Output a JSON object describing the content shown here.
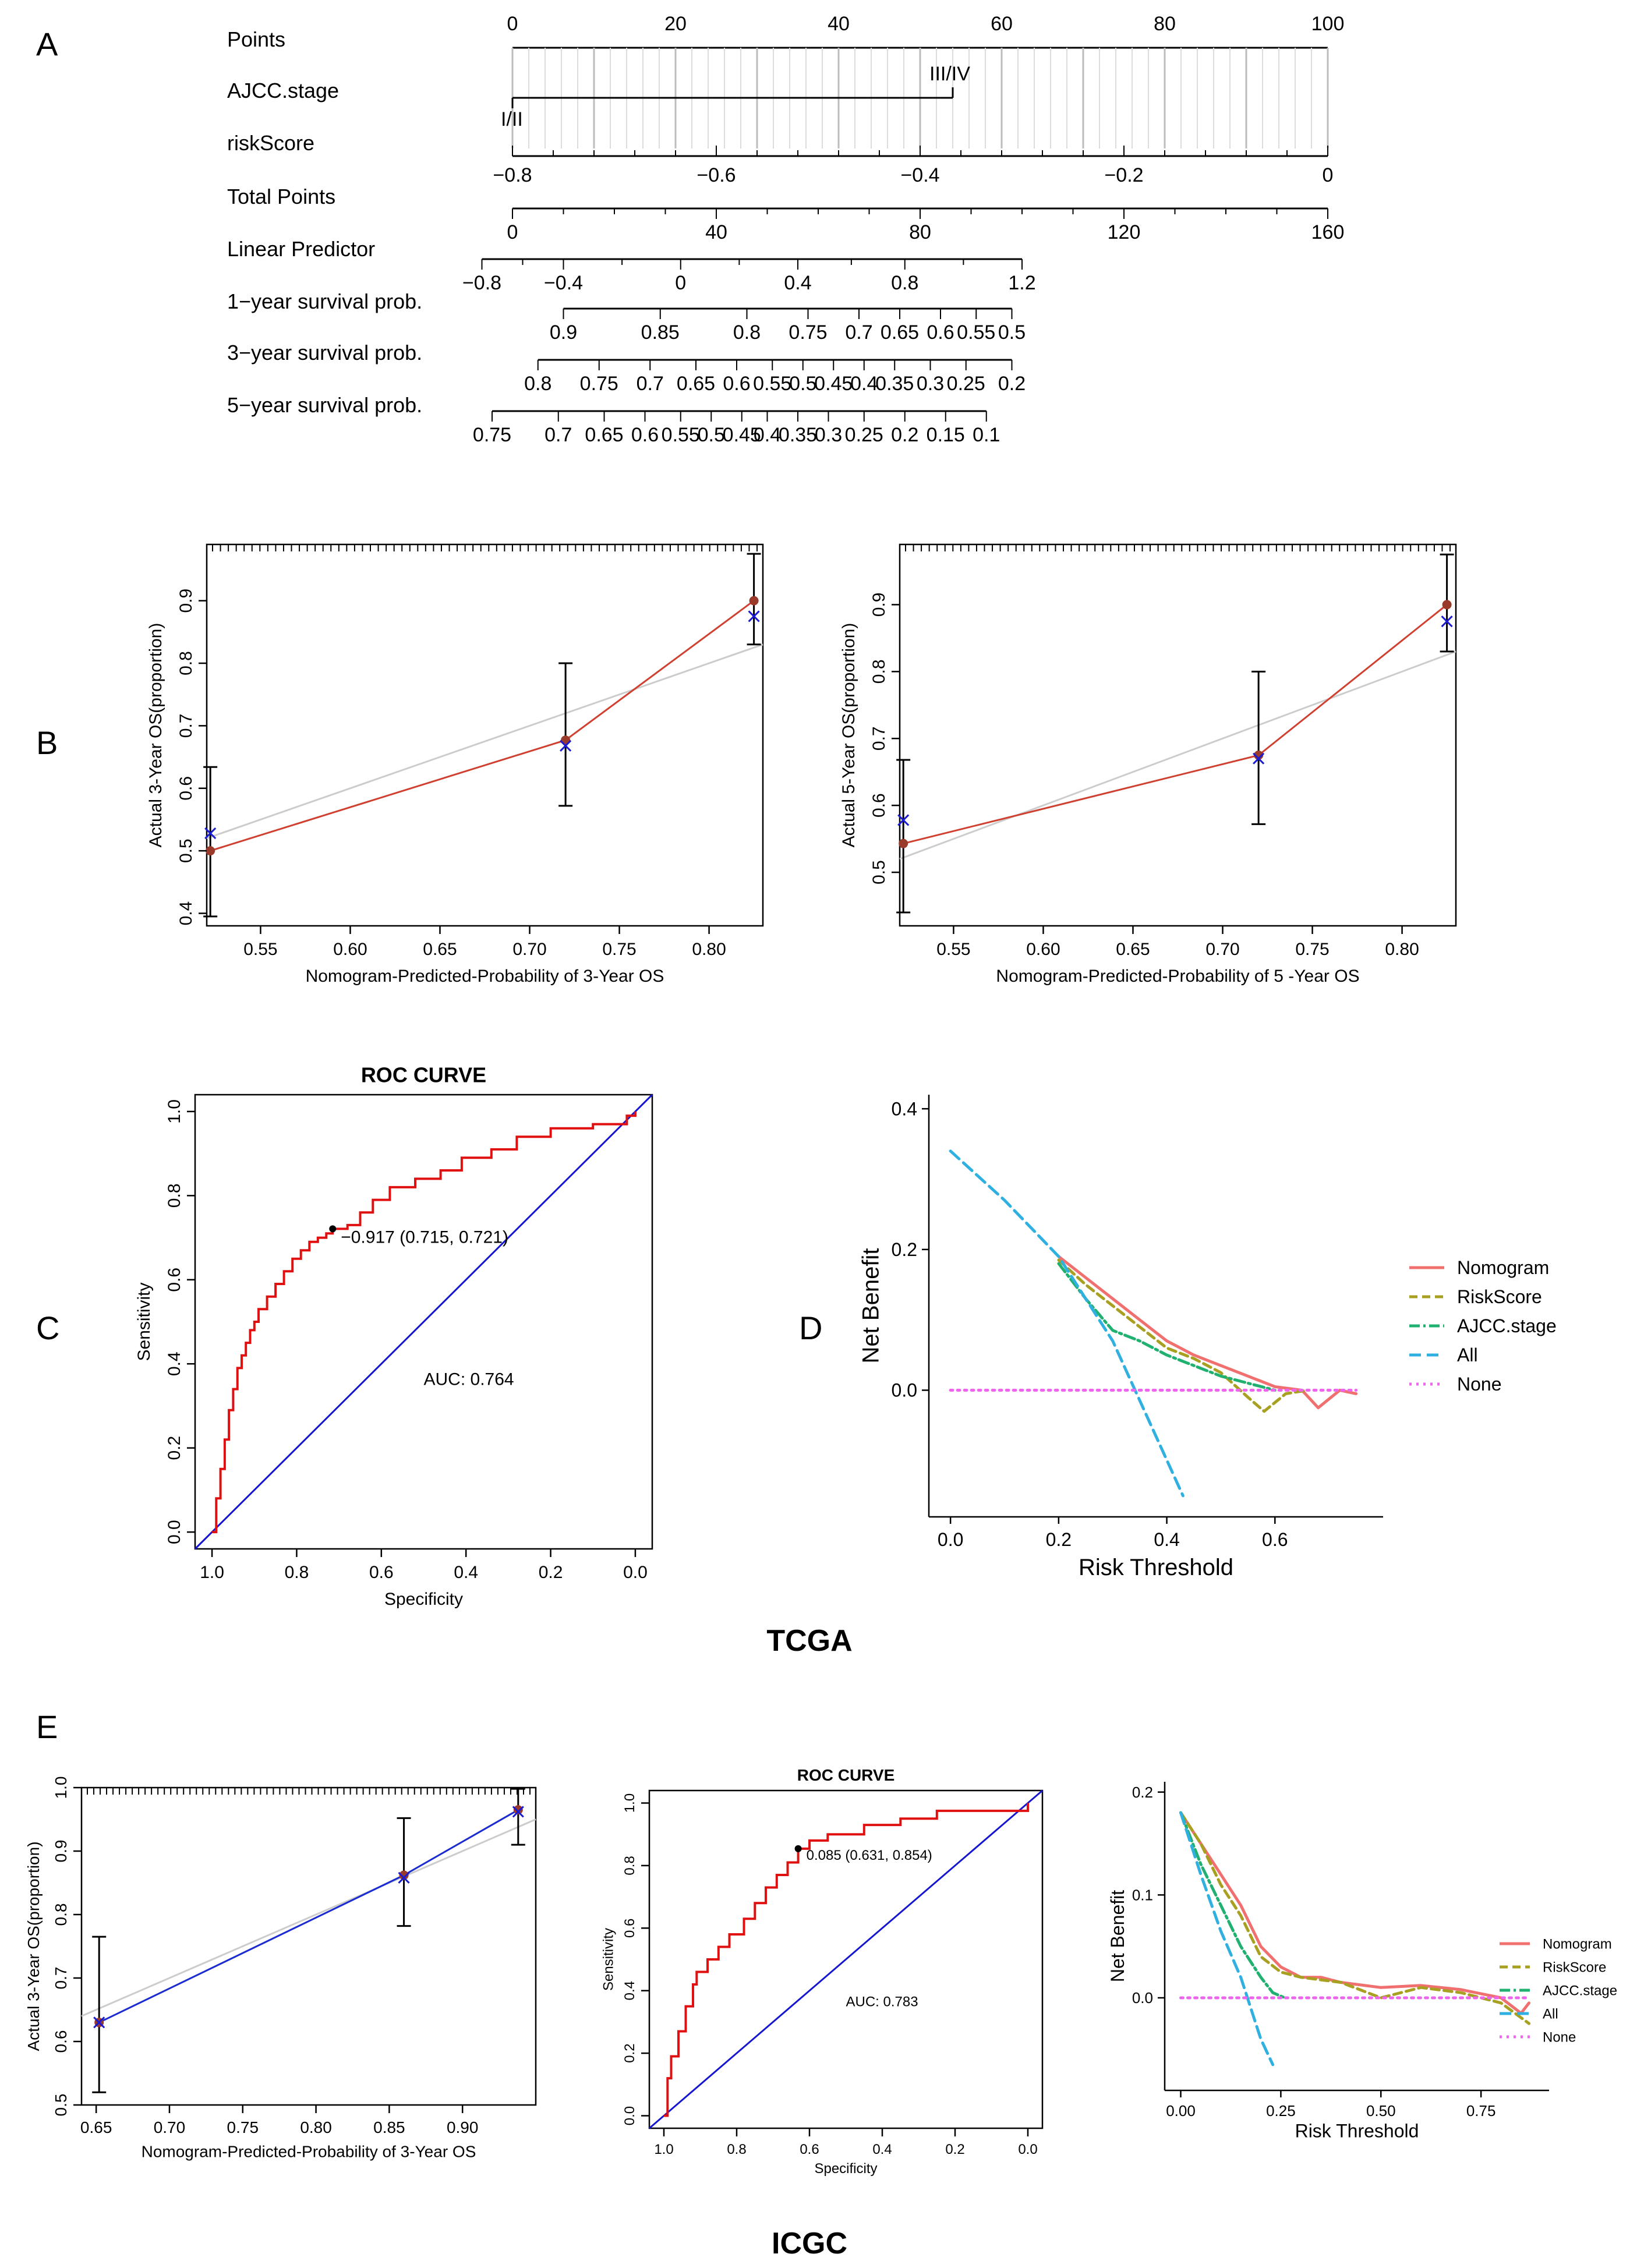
{
  "panels": {
    "A": "A",
    "B": "B",
    "C": "C",
    "D": "D",
    "E": "E"
  },
  "cohorts": {
    "tcga": "TCGA",
    "icgc": "ICGC"
  },
  "nomogram": {
    "rows": [
      {
        "key": "points",
        "label": "Points"
      },
      {
        "key": "stage",
        "label": "AJCC.stage"
      },
      {
        "key": "risk",
        "label": "riskScore"
      },
      {
        "key": "total",
        "label": "Total Points"
      },
      {
        "key": "lp",
        "label": "Linear Predictor"
      },
      {
        "key": "y1",
        "label": "1−year survival prob."
      },
      {
        "key": "y3",
        "label": "3−year survival prob."
      },
      {
        "key": "y5",
        "label": "5−year survival prob."
      }
    ],
    "points_ticks": [
      "0",
      "20",
      "40",
      "60",
      "80",
      "100"
    ],
    "stage_levels": [
      "I/II",
      "III/IV"
    ],
    "stage_points": [
      0,
      54
    ],
    "risk_ticks": [
      {
        "label": "−0.8",
        "pts": 0
      },
      {
        "label": "−0.6",
        "pts": 25
      },
      {
        "label": "−0.4",
        "pts": 50
      },
      {
        "label": "−0.2",
        "pts": 75
      },
      {
        "label": "0",
        "pts": 100
      }
    ],
    "total_ticks": [
      "0",
      "40",
      "80",
      "120",
      "160"
    ],
    "total_range": [
      0,
      160
    ],
    "lp_ticks": [
      {
        "label": "−0.8",
        "total": -6
      },
      {
        "label": "−0.4",
        "total": 10
      },
      {
        "label": "0",
        "total": 33
      },
      {
        "label": "0.4",
        "total": 56
      },
      {
        "label": "0.8",
        "total": 77
      },
      {
        "label": "1.2",
        "total": 100
      }
    ],
    "y1_ticks": [
      {
        "label": "0.9",
        "total": 10
      },
      {
        "label": "0.85",
        "total": 29
      },
      {
        "label": "0.8",
        "total": 46
      },
      {
        "label": "0.75",
        "total": 58
      },
      {
        "label": "0.7",
        "total": 68
      },
      {
        "label": "0.65",
        "total": 76
      },
      {
        "label": "0.6",
        "total": 84
      },
      {
        "label": "0.55",
        "total": 91
      },
      {
        "label": "0.5",
        "total": 98
      }
    ],
    "y3_ticks": [
      {
        "label": "0.8",
        "total": 5
      },
      {
        "label": "0.75",
        "total": 17
      },
      {
        "label": "0.7",
        "total": 27
      },
      {
        "label": "0.65",
        "total": 36
      },
      {
        "label": "0.6",
        "total": 44
      },
      {
        "label": "0.55",
        "total": 51
      },
      {
        "label": "0.5",
        "total": 57
      },
      {
        "label": "0.45",
        "total": 63
      },
      {
        "label": "0.4",
        "total": 69
      },
      {
        "label": "0.35",
        "total": 75
      },
      {
        "label": "0.3",
        "total": 82
      },
      {
        "label": "0.25",
        "total": 89
      },
      {
        "label": "0.2",
        "total": 98
      }
    ],
    "y5_ticks": [
      {
        "label": "0.75",
        "total": -4
      },
      {
        "label": "0.7",
        "total": 9
      },
      {
        "label": "0.65",
        "total": 18
      },
      {
        "label": "0.6",
        "total": 26
      },
      {
        "label": "0.55",
        "total": 33
      },
      {
        "label": "0.5",
        "total": 39
      },
      {
        "label": "0.45",
        "total": 45
      },
      {
        "label": "0.4",
        "total": 50
      },
      {
        "label": "0.35",
        "total": 56
      },
      {
        "label": "0.3",
        "total": 62
      },
      {
        "label": "0.25",
        "total": 69
      },
      {
        "label": "0.2",
        "total": 77
      },
      {
        "label": "0.15",
        "total": 85
      },
      {
        "label": "0.1",
        "total": 93
      }
    ]
  },
  "chart_data": [
    {
      "id": "B1",
      "type": "scatter",
      "title": "",
      "xlabel": "Nomogram-Predicted-Probability of 3-Year OS",
      "ylabel": "Actual 3-Year OS(proportion)",
      "xlim": [
        0.52,
        0.83
      ],
      "ylim": [
        0.38,
        0.99
      ],
      "xticks": [
        0.55,
        0.6,
        0.65,
        0.7,
        0.75,
        0.8
      ],
      "yticks": [
        0.4,
        0.5,
        0.6,
        0.7,
        0.8,
        0.9
      ],
      "line_color": "#d04030",
      "x": [
        0.522,
        0.72,
        0.825
      ],
      "observed": [
        0.5,
        0.677,
        0.9
      ],
      "corrected": [
        0.528,
        0.668,
        0.875
      ],
      "err_low": [
        0.395,
        0.572,
        0.83
      ],
      "err_high": [
        0.634,
        0.8,
        0.975
      ]
    },
    {
      "id": "B2",
      "type": "scatter",
      "title": "",
      "xlabel": "Nomogram-Predicted-Probability of 5 -Year OS",
      "ylabel": "Actual 5-Year OS(proportion)",
      "xlim": [
        0.52,
        0.83
      ],
      "ylim": [
        0.42,
        0.99
      ],
      "xticks": [
        0.55,
        0.6,
        0.65,
        0.7,
        0.75,
        0.8
      ],
      "yticks": [
        0.5,
        0.6,
        0.7,
        0.8,
        0.9
      ],
      "line_color": "#d04030",
      "x": [
        0.522,
        0.72,
        0.825
      ],
      "observed": [
        0.543,
        0.675,
        0.9
      ],
      "corrected": [
        0.578,
        0.67,
        0.875
      ],
      "err_low": [
        0.44,
        0.572,
        0.83
      ],
      "err_high": [
        0.668,
        0.8,
        0.975
      ]
    },
    {
      "id": "C",
      "type": "line",
      "title": "ROC CURVE",
      "xlabel": "Specificity",
      "ylabel": "Sensitivity",
      "xlim": [
        1.04,
        -0.04
      ],
      "ylim": [
        -0.04,
        1.04
      ],
      "xticks": [
        1.0,
        0.8,
        0.6,
        0.4,
        0.2,
        0.0
      ],
      "xtick_labels": [
        "1.0",
        "0.8",
        "0.6",
        "0.4",
        "0.2",
        "0.0"
      ],
      "yticks": [
        0.0,
        0.2,
        0.4,
        0.6,
        0.8,
        1.0
      ],
      "ytick_labels": [
        "0.0",
        "0.2",
        "0.4",
        "0.6",
        "0.8",
        "1.0"
      ],
      "auc_label": "AUC: 0.764",
      "cutoff_label": "−0.917 (0.715, 0.721)",
      "cutoff_point": [
        0.715,
        0.721
      ],
      "specificity": [
        1.0,
        0.99,
        0.98,
        0.97,
        0.96,
        0.95,
        0.94,
        0.93,
        0.92,
        0.91,
        0.9,
        0.89,
        0.87,
        0.85,
        0.83,
        0.81,
        0.79,
        0.77,
        0.75,
        0.73,
        0.715,
        0.68,
        0.65,
        0.62,
        0.58,
        0.52,
        0.46,
        0.41,
        0.34,
        0.28,
        0.2,
        0.1,
        0.02,
        0.0
      ],
      "sensitivity": [
        0.0,
        0.08,
        0.15,
        0.22,
        0.29,
        0.34,
        0.39,
        0.42,
        0.45,
        0.48,
        0.5,
        0.53,
        0.56,
        0.59,
        0.62,
        0.65,
        0.67,
        0.69,
        0.7,
        0.71,
        0.721,
        0.73,
        0.76,
        0.79,
        0.82,
        0.84,
        0.86,
        0.89,
        0.91,
        0.94,
        0.96,
        0.97,
        0.99,
        1.0
      ]
    },
    {
      "id": "D",
      "type": "line",
      "title": "",
      "xlabel": "Risk Threshold",
      "ylabel": "Net Benefit",
      "xlim": [
        -0.04,
        0.8
      ],
      "ylim": [
        -0.18,
        0.42
      ],
      "xticks": [
        0.0,
        0.2,
        0.4,
        0.6
      ],
      "xtick_labels": [
        "0.0",
        "0.2",
        "0.4",
        "0.6"
      ],
      "yticks": [
        0.0,
        0.2,
        0.4
      ],
      "ytick_labels": [
        "0.0",
        "0.2",
        "0.4"
      ],
      "legend": "right",
      "series": [
        {
          "name": "Nomogram",
          "color": "#f07070",
          "dash": "",
          "x": [
            0.2,
            0.25,
            0.3,
            0.35,
            0.4,
            0.45,
            0.5,
            0.55,
            0.6,
            0.65,
            0.68,
            0.72,
            0.75
          ],
          "y": [
            0.19,
            0.16,
            0.13,
            0.1,
            0.07,
            0.05,
            0.035,
            0.02,
            0.005,
            0.0,
            -0.025,
            0.0,
            -0.005
          ]
        },
        {
          "name": "RiskScore",
          "color": "#a8a020",
          "dash": "14 8",
          "x": [
            0.2,
            0.25,
            0.3,
            0.35,
            0.4,
            0.45,
            0.5,
            0.55,
            0.58,
            0.62,
            0.66
          ],
          "y": [
            0.185,
            0.15,
            0.12,
            0.09,
            0.06,
            0.045,
            0.025,
            -0.01,
            -0.03,
            -0.005,
            0.0
          ]
        },
        {
          "name": "AJCC.stage",
          "color": "#20b070",
          "dash": "18 6 4 6",
          "x": [
            0.2,
            0.25,
            0.3,
            0.35,
            0.4,
            0.45,
            0.5,
            0.55,
            0.6
          ],
          "y": [
            0.18,
            0.13,
            0.085,
            0.07,
            0.05,
            0.035,
            0.02,
            0.01,
            0.0
          ]
        },
        {
          "name": "All",
          "color": "#30b0e0",
          "dash": "20 10",
          "x": [
            0.0,
            0.1,
            0.2,
            0.3,
            0.43
          ],
          "y": [
            0.34,
            0.27,
            0.19,
            0.07,
            -0.15
          ]
        },
        {
          "name": "None",
          "color": "#ee66ee",
          "dash": "4 8",
          "x": [
            0.0,
            0.75
          ],
          "y": [
            0.0,
            0.0
          ]
        }
      ]
    },
    {
      "id": "E1",
      "type": "scatter",
      "title": "",
      "xlabel": "Nomogram-Predicted-Probability of 3-Year OS",
      "ylabel": "Actual 3-Year OS(proportion)",
      "xlim": [
        0.64,
        0.95
      ],
      "ylim": [
        0.5,
        1.0
      ],
      "xticks": [
        0.65,
        0.7,
        0.75,
        0.8,
        0.85,
        0.9
      ],
      "yticks": [
        0.5,
        0.6,
        0.7,
        0.8,
        0.9,
        1.0
      ],
      "line_color": "#1a2bd0",
      "x": [
        0.652,
        0.86,
        0.938
      ],
      "observed": [
        0.63,
        0.862,
        0.965
      ],
      "corrected": [
        0.63,
        0.858,
        0.962
      ],
      "err_low": [
        0.52,
        0.782,
        0.91
      ],
      "err_high": [
        0.765,
        0.952,
        0.998
      ]
    },
    {
      "id": "E2",
      "type": "line",
      "title": "ROC CURVE",
      "xlabel": "Specificity",
      "ylabel": "Sensitivity",
      "xlim": [
        1.04,
        -0.04
      ],
      "ylim": [
        -0.04,
        1.04
      ],
      "xticks": [
        1.0,
        0.8,
        0.6,
        0.4,
        0.2,
        0.0
      ],
      "xtick_labels": [
        "1.0",
        "0.8",
        "0.6",
        "0.4",
        "0.2",
        "0.0"
      ],
      "yticks": [
        0.0,
        0.2,
        0.4,
        0.6,
        0.8,
        1.0
      ],
      "ytick_labels": [
        "0.0",
        "0.2",
        "0.4",
        "0.6",
        "0.8",
        "1.0"
      ],
      "auc_label": "AUC: 0.783",
      "cutoff_label": "0.085 (0.631, 0.854)",
      "cutoff_point": [
        0.631,
        0.854
      ],
      "specificity": [
        1.0,
        0.99,
        0.98,
        0.96,
        0.94,
        0.92,
        0.91,
        0.88,
        0.85,
        0.82,
        0.78,
        0.75,
        0.72,
        0.69,
        0.66,
        0.631,
        0.6,
        0.55,
        0.45,
        0.35,
        0.25,
        0.1,
        0.0
      ],
      "sensitivity": [
        0.0,
        0.12,
        0.19,
        0.27,
        0.35,
        0.42,
        0.46,
        0.5,
        0.54,
        0.58,
        0.63,
        0.68,
        0.73,
        0.77,
        0.81,
        0.854,
        0.88,
        0.9,
        0.93,
        0.95,
        0.975,
        0.975,
        1.0
      ]
    },
    {
      "id": "E3",
      "type": "line",
      "title": "",
      "xlabel": "Risk Threshold",
      "ylabel": "Net Benefit",
      "xlim": [
        -0.04,
        0.92
      ],
      "ylim": [
        -0.09,
        0.21
      ],
      "xticks": [
        0.0,
        0.25,
        0.5,
        0.75
      ],
      "xtick_labels": [
        "0.00",
        "0.25",
        "0.50",
        "0.75"
      ],
      "yticks": [
        0.0,
        0.1,
        0.2
      ],
      "ytick_labels": [
        "0.0",
        "0.1",
        "0.2"
      ],
      "legend": "right",
      "series": [
        {
          "name": "Nomogram",
          "color": "#f07070",
          "dash": "",
          "x": [
            0.0,
            0.05,
            0.1,
            0.15,
            0.2,
            0.25,
            0.3,
            0.35,
            0.4,
            0.5,
            0.6,
            0.7,
            0.8,
            0.85,
            0.87
          ],
          "y": [
            0.18,
            0.15,
            0.12,
            0.09,
            0.05,
            0.03,
            0.02,
            0.02,
            0.015,
            0.01,
            0.012,
            0.008,
            0.0,
            -0.015,
            -0.005
          ]
        },
        {
          "name": "RiskScore",
          "color": "#a8a020",
          "dash": "14 8",
          "x": [
            0.0,
            0.05,
            0.1,
            0.15,
            0.2,
            0.25,
            0.3,
            0.4,
            0.5,
            0.6,
            0.7,
            0.8,
            0.87
          ],
          "y": [
            0.18,
            0.15,
            0.11,
            0.08,
            0.04,
            0.025,
            0.02,
            0.015,
            0.0,
            0.01,
            0.005,
            -0.005,
            -0.025
          ]
        },
        {
          "name": "AJCC.stage",
          "color": "#20b070",
          "dash": "18 6 4 6",
          "x": [
            0.0,
            0.05,
            0.1,
            0.15,
            0.2,
            0.23,
            0.26
          ],
          "y": [
            0.18,
            0.13,
            0.09,
            0.05,
            0.02,
            0.005,
            0.0
          ]
        },
        {
          "name": "All",
          "color": "#30b0e0",
          "dash": "20 10",
          "x": [
            0.0,
            0.05,
            0.1,
            0.15,
            0.2,
            0.23
          ],
          "y": [
            0.18,
            0.12,
            0.065,
            0.02,
            -0.04,
            -0.065
          ]
        },
        {
          "name": "None",
          "color": "#ee66ee",
          "dash": "4 8",
          "x": [
            0.0,
            0.87
          ],
          "y": [
            0.0,
            0.0
          ]
        }
      ]
    }
  ]
}
